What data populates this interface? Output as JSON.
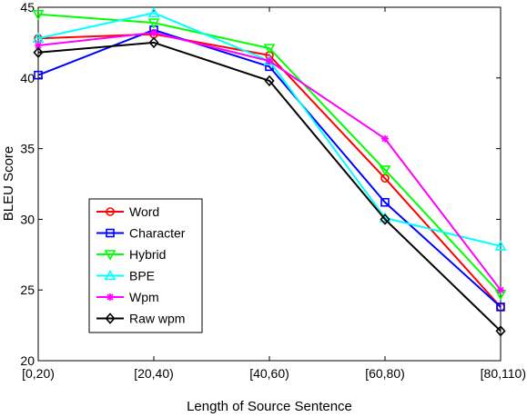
{
  "chart_data": {
    "type": "line",
    "title": "",
    "xlabel": "Length of Source Sentence",
    "ylabel": "BLEU Score",
    "categories": [
      "[0,20)",
      "[20,40)",
      "[40,60)",
      "[60,80)",
      "[80,110)"
    ],
    "ylim": [
      20,
      45
    ],
    "yticks": [
      20,
      25,
      30,
      35,
      40,
      45
    ],
    "grid": false,
    "legend_position": "lower-left",
    "series": [
      {
        "name": "Word",
        "color": "#ff0000",
        "marker": "circle",
        "values": [
          42.8,
          43.1,
          41.6,
          32.9,
          23.8
        ]
      },
      {
        "name": "Character",
        "color": "#0000ff",
        "marker": "square",
        "values": [
          40.2,
          43.4,
          40.8,
          31.2,
          23.8
        ]
      },
      {
        "name": "Hybrid",
        "color": "#00ff00",
        "marker": "triangle-down",
        "values": [
          44.5,
          43.9,
          42.1,
          33.5,
          24.7
        ]
      },
      {
        "name": "BPE",
        "color": "#00ffff",
        "marker": "triangle-up",
        "values": [
          42.8,
          44.6,
          41.2,
          30.1,
          28.1
        ]
      },
      {
        "name": "Wpm",
        "color": "#ff00ff",
        "marker": "star",
        "values": [
          42.3,
          43.2,
          41.2,
          35.7,
          25.0
        ]
      },
      {
        "name": "Raw wpm",
        "color": "#000000",
        "marker": "diamond",
        "values": [
          41.8,
          42.5,
          39.8,
          30.0,
          22.1
        ]
      }
    ]
  }
}
